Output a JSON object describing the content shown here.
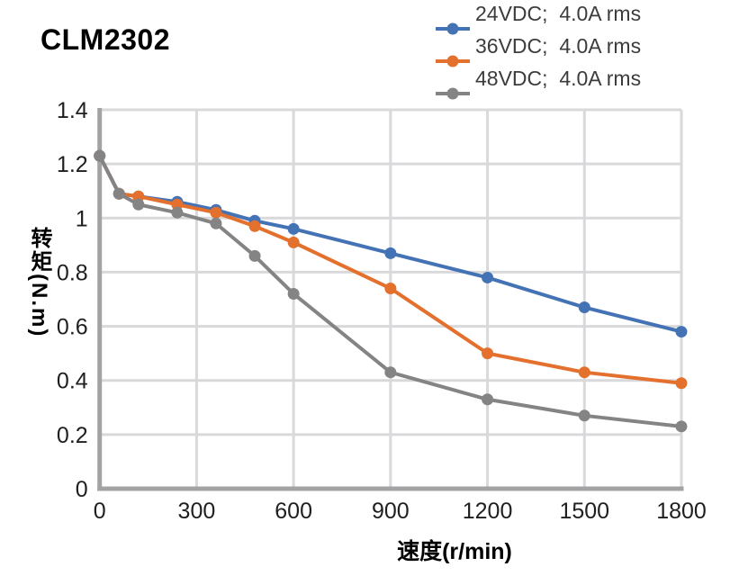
{
  "page": {
    "title": "CLM2302"
  },
  "colors": {
    "grid": "#d9d9db",
    "spine": "#a3a3a5",
    "tick_text": "#1f1f1f",
    "legend_text": "#3c3c3c",
    "title_text": "#000000",
    "series_blue": "#4473b5",
    "series_orange": "#e4702d",
    "series_gray": "#848484"
  },
  "chart_data": {
    "type": "line",
    "title": "CLM2302",
    "xlabel": "速度(r/min)",
    "ylabel": "转矩(N.m)",
    "xlim": [
      0,
      1800
    ],
    "ylim": [
      0,
      1.4
    ],
    "grid": true,
    "legend_position": "top-right",
    "x_ticks": [
      "0",
      "300",
      "600",
      "900",
      "1200",
      "1500",
      "1800"
    ],
    "y_ticks": [
      "0",
      "0.2",
      "0.4",
      "0.6",
      "0.8",
      "1",
      "1.2",
      "1.4"
    ],
    "x": [
      0,
      60,
      120,
      240,
      360,
      480,
      600,
      900,
      1200,
      1500,
      1800
    ],
    "series": [
      {
        "label": "24VDC;  4.0A rms",
        "color": "#4473b5",
        "values": [
          1.23,
          1.09,
          1.08,
          1.06,
          1.03,
          0.99,
          0.96,
          0.87,
          0.78,
          0.67,
          0.58
        ]
      },
      {
        "label": "36VDC;  4.0A rms",
        "color": "#e4702d",
        "values": [
          1.23,
          1.09,
          1.08,
          1.05,
          1.02,
          0.97,
          0.91,
          0.74,
          0.5,
          0.43,
          0.39
        ]
      },
      {
        "label": "48VDC;  4.0A rms",
        "color": "#848484",
        "values": [
          1.23,
          1.09,
          1.05,
          1.02,
          0.98,
          0.86,
          0.72,
          0.43,
          0.33,
          0.27,
          0.23
        ]
      }
    ]
  }
}
